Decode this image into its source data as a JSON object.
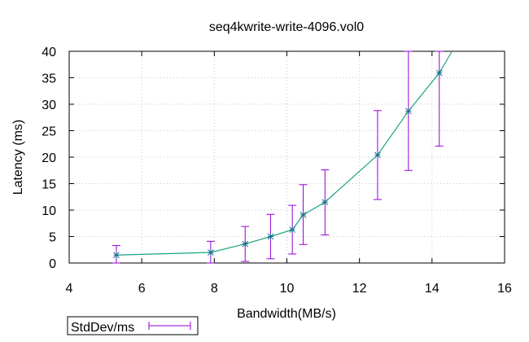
{
  "chart_data": {
    "type": "line",
    "title": "seq4kwrite-write-4096.vol0",
    "xlabel": "Bandwidth(MB/s)",
    "ylabel": "Latency (ms)",
    "xlim": [
      4,
      16
    ],
    "ylim": [
      0,
      40
    ],
    "xticks": [
      4,
      6,
      8,
      10,
      12,
      14,
      16
    ],
    "yticks": [
      0,
      5,
      10,
      15,
      20,
      25,
      30,
      35,
      40
    ],
    "grid": true,
    "legend_position": "bottom-left",
    "series": [
      {
        "name": "StdDev/ms",
        "line_color": "#1aa383",
        "errorbar_color": "#9400d3",
        "points": [
          {
            "x": 5.3,
            "y": 1.5,
            "ylow": 0.0,
            "yhigh": 3.3
          },
          {
            "x": 7.9,
            "y": 2.0,
            "ylow": 0.0,
            "yhigh": 4.1
          },
          {
            "x": 8.85,
            "y": 3.6,
            "ylow": 0.3,
            "yhigh": 6.9
          },
          {
            "x": 9.55,
            "y": 5.0,
            "ylow": 0.8,
            "yhigh": 9.2
          },
          {
            "x": 10.15,
            "y": 6.3,
            "ylow": 1.7,
            "yhigh": 10.9
          },
          {
            "x": 10.45,
            "y": 9.1,
            "ylow": 3.5,
            "yhigh": 14.8
          },
          {
            "x": 11.05,
            "y": 11.5,
            "ylow": 5.3,
            "yhigh": 17.6
          },
          {
            "x": 12.5,
            "y": 20.4,
            "ylow": 12.0,
            "yhigh": 28.8
          },
          {
            "x": 13.35,
            "y": 28.7,
            "ylow": 17.5,
            "yhigh": 40.0
          },
          {
            "x": 14.2,
            "y": 35.9,
            "ylow": 22.1,
            "yhigh": 40.0
          },
          {
            "x": 14.55,
            "y": 40.0
          }
        ]
      }
    ]
  }
}
